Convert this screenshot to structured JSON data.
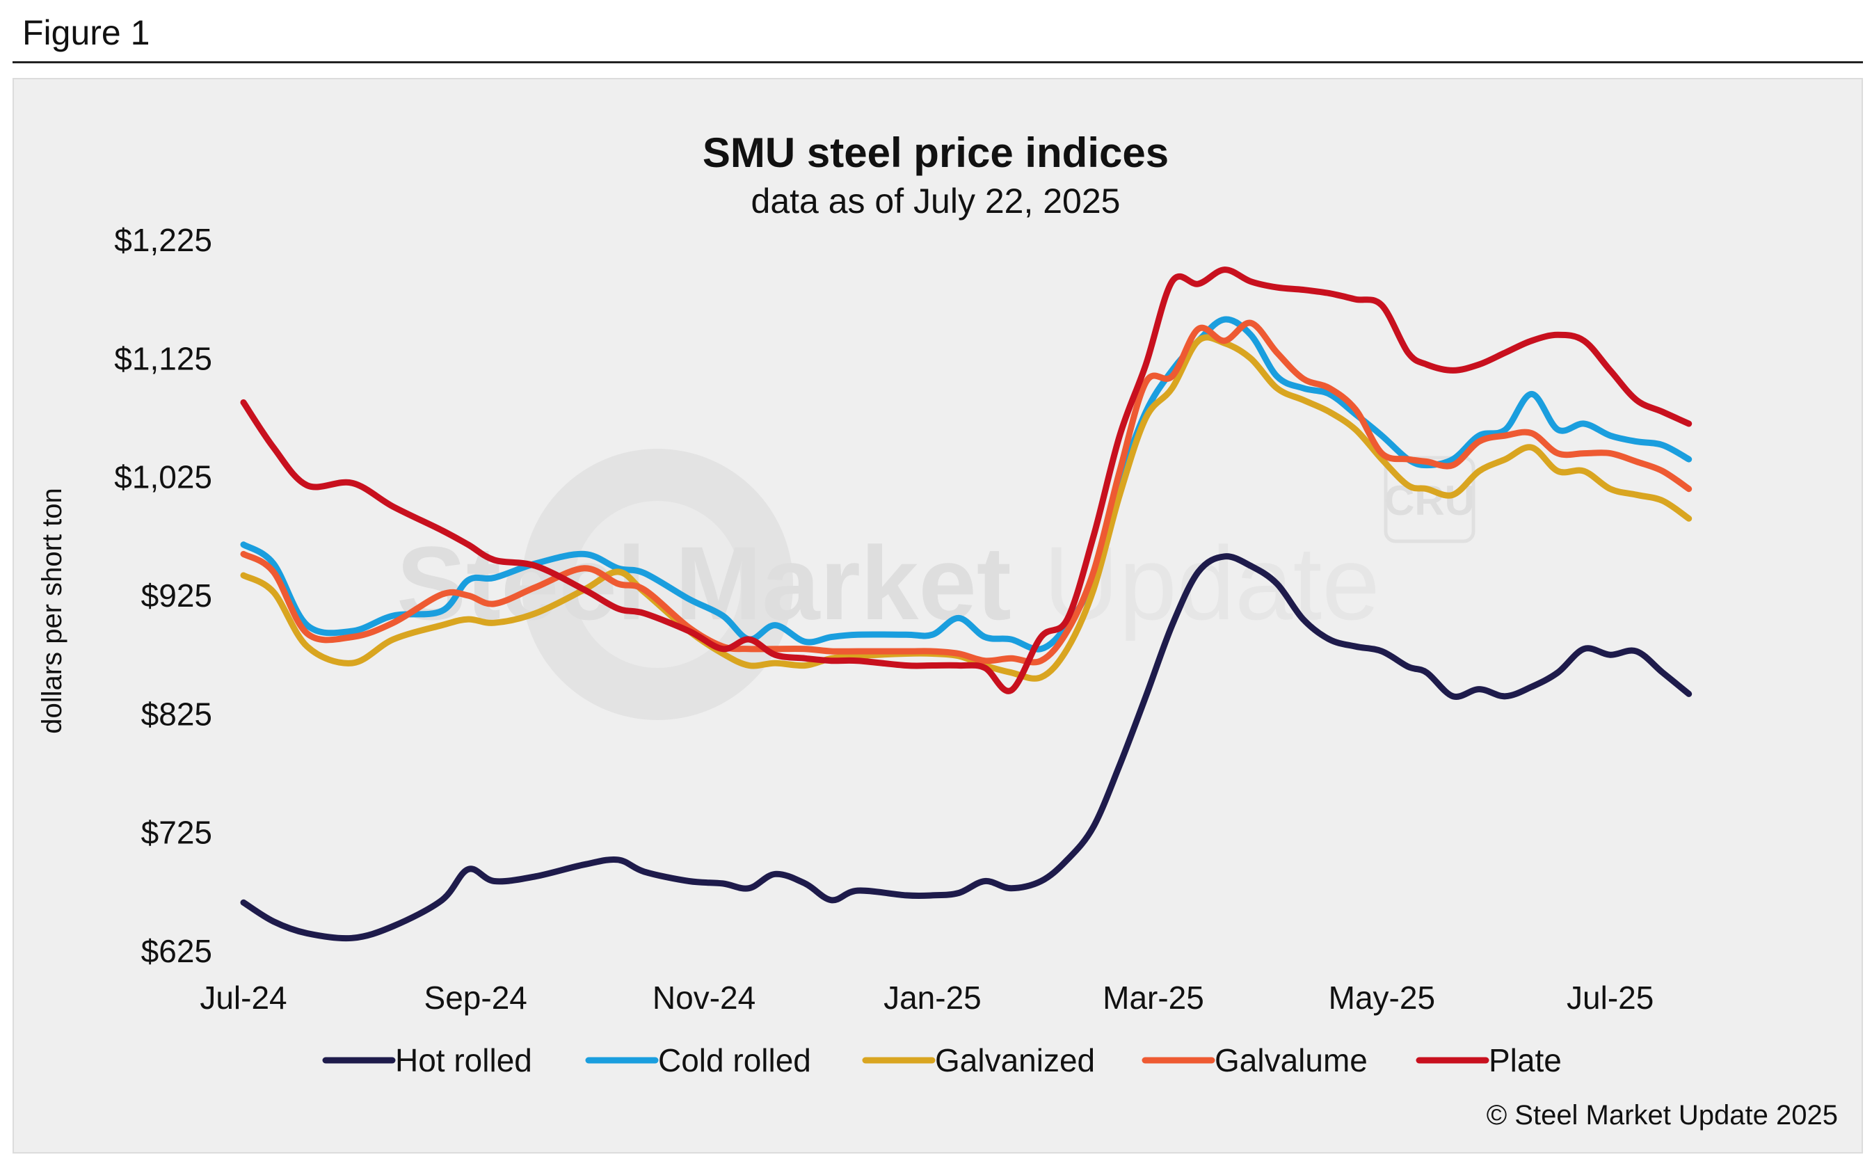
{
  "figure": {
    "label": "Figure 1"
  },
  "watermark": {
    "text_dark": "Steel Market",
    "text_light": "Update",
    "badge": "CRU"
  },
  "copyright": "© Steel Market Update 2025",
  "chart_data": {
    "type": "line",
    "title": "SMU steel price indices",
    "subtitle": "data as of July 22, 2025",
    "xlabel": "",
    "ylabel": "dollars per short ton",
    "ylim": [
      625,
      1225
    ],
    "xlim": [
      "2024-07-01",
      "2025-08-10"
    ],
    "y_ticks": [
      625,
      725,
      825,
      925,
      1025,
      1125,
      1225
    ],
    "y_tick_labels": [
      "$625",
      "$725",
      "$825",
      "$925",
      "$1,025",
      "$1,125",
      "$1,225"
    ],
    "x_ticks": [
      "2024-07-01",
      "2024-09-01",
      "2024-11-01",
      "2025-01-01",
      "2025-03-01",
      "2025-05-01",
      "2025-07-01"
    ],
    "x_tick_labels": [
      "Jul-24",
      "Sep-24",
      "Nov-24",
      "Jan-25",
      "Mar-25",
      "May-25",
      "Jul-25"
    ],
    "grid": false,
    "legend_position": "bottom",
    "series": [
      {
        "name": "Hot rolled",
        "color": "#1e1b4b",
        "x": [
          "2024-07-01",
          "2024-07-09",
          "2024-07-18",
          "2024-07-30",
          "2024-08-10",
          "2024-08-23",
          "2024-08-30",
          "2024-09-06",
          "2024-09-17",
          "2024-09-30",
          "2024-10-09",
          "2024-10-16",
          "2024-10-28",
          "2024-11-06",
          "2024-11-13",
          "2024-11-20",
          "2024-11-28",
          "2024-12-05",
          "2024-12-12",
          "2024-12-25",
          "2025-01-01",
          "2025-01-08",
          "2025-01-15",
          "2025-01-22",
          "2025-01-30",
          "2025-02-06",
          "2025-02-13",
          "2025-02-20",
          "2025-02-27",
          "2025-03-06",
          "2025-03-13",
          "2025-03-20",
          "2025-03-27",
          "2025-04-03",
          "2025-04-10",
          "2025-04-17",
          "2025-04-24",
          "2025-05-01",
          "2025-05-08",
          "2025-05-13",
          "2025-05-20",
          "2025-05-27",
          "2025-06-03",
          "2025-06-10",
          "2025-06-17",
          "2025-06-24",
          "2025-07-01",
          "2025-07-08",
          "2025-07-15",
          "2025-07-22"
        ],
        "values": [
          666,
          650,
          640,
          636,
          646,
          668,
          694,
          684,
          688,
          698,
          702,
          692,
          684,
          682,
          678,
          690,
          682,
          668,
          676,
          672,
          672,
          674,
          684,
          678,
          684,
          702,
          730,
          782,
          840,
          900,
          945,
          958,
          950,
          935,
          905,
          888,
          882,
          878,
          865,
          860,
          840,
          846,
          840,
          848,
          860,
          880,
          875,
          878,
          860,
          842
        ]
      },
      {
        "name": "Cold rolled",
        "color": "#1a9ede",
        "x": [
          "2024-07-01",
          "2024-07-09",
          "2024-07-18",
          "2024-07-30",
          "2024-08-10",
          "2024-08-23",
          "2024-08-30",
          "2024-09-06",
          "2024-09-17",
          "2024-09-30",
          "2024-10-09",
          "2024-10-16",
          "2024-10-28",
          "2024-11-06",
          "2024-11-13",
          "2024-11-20",
          "2024-11-28",
          "2024-12-05",
          "2024-12-12",
          "2024-12-25",
          "2025-01-01",
          "2025-01-08",
          "2025-01-15",
          "2025-01-22",
          "2025-01-30",
          "2025-02-06",
          "2025-02-13",
          "2025-02-20",
          "2025-02-27",
          "2025-03-06",
          "2025-03-13",
          "2025-03-20",
          "2025-03-27",
          "2025-04-03",
          "2025-04-10",
          "2025-04-17",
          "2025-04-24",
          "2025-05-01",
          "2025-05-08",
          "2025-05-13",
          "2025-05-20",
          "2025-05-27",
          "2025-06-03",
          "2025-06-10",
          "2025-06-17",
          "2025-06-24",
          "2025-07-01",
          "2025-07-08",
          "2025-07-15",
          "2025-07-22"
        ],
        "values": [
          968,
          952,
          900,
          895,
          908,
          912,
          938,
          940,
          952,
          960,
          948,
          944,
          922,
          908,
          888,
          900,
          886,
          890,
          892,
          892,
          892,
          906,
          890,
          888,
          880,
          900,
          940,
          1020,
          1080,
          1115,
          1140,
          1158,
          1145,
          1110,
          1100,
          1095,
          1078,
          1060,
          1040,
          1035,
          1040,
          1060,
          1065,
          1095,
          1065,
          1070,
          1060,
          1055,
          1052,
          1040
        ]
      },
      {
        "name": "Galvanized",
        "color": "#d9a520",
        "x": [
          "2024-07-01",
          "2024-07-09",
          "2024-07-18",
          "2024-07-30",
          "2024-08-10",
          "2024-08-23",
          "2024-08-30",
          "2024-09-06",
          "2024-09-17",
          "2024-09-30",
          "2024-10-09",
          "2024-10-16",
          "2024-10-28",
          "2024-11-06",
          "2024-11-13",
          "2024-11-20",
          "2024-11-28",
          "2024-12-05",
          "2024-12-12",
          "2024-12-25",
          "2025-01-01",
          "2025-01-08",
          "2025-01-15",
          "2025-01-22",
          "2025-01-30",
          "2025-02-06",
          "2025-02-13",
          "2025-02-20",
          "2025-02-27",
          "2025-03-06",
          "2025-03-13",
          "2025-03-20",
          "2025-03-27",
          "2025-04-03",
          "2025-04-10",
          "2025-04-17",
          "2025-04-24",
          "2025-05-01",
          "2025-05-08",
          "2025-05-13",
          "2025-05-20",
          "2025-05-27",
          "2025-06-03",
          "2025-06-10",
          "2025-06-17",
          "2025-06-24",
          "2025-07-01",
          "2025-07-08",
          "2025-07-15",
          "2025-07-22"
        ],
        "values": [
          942,
          928,
          882,
          868,
          888,
          900,
          905,
          902,
          910,
          930,
          945,
          928,
          895,
          876,
          866,
          868,
          866,
          872,
          874,
          876,
          876,
          874,
          866,
          860,
          856,
          880,
          930,
          1010,
          1075,
          1100,
          1140,
          1138,
          1125,
          1100,
          1090,
          1080,
          1065,
          1040,
          1018,
          1015,
          1010,
          1030,
          1040,
          1050,
          1030,
          1030,
          1015,
          1010,
          1005,
          990
        ]
      },
      {
        "name": "Galvalume",
        "color": "#ee5a32",
        "x": [
          "2024-07-01",
          "2024-07-09",
          "2024-07-18",
          "2024-07-30",
          "2024-08-10",
          "2024-08-23",
          "2024-08-30",
          "2024-09-06",
          "2024-09-17",
          "2024-09-30",
          "2024-10-09",
          "2024-10-16",
          "2024-10-28",
          "2024-11-06",
          "2024-11-13",
          "2024-11-20",
          "2024-11-28",
          "2024-12-05",
          "2024-12-12",
          "2024-12-25",
          "2025-01-01",
          "2025-01-08",
          "2025-01-15",
          "2025-01-22",
          "2025-01-30",
          "2025-02-06",
          "2025-02-13",
          "2025-02-20",
          "2025-02-27",
          "2025-03-06",
          "2025-03-13",
          "2025-03-20",
          "2025-03-27",
          "2025-04-03",
          "2025-04-10",
          "2025-04-17",
          "2025-04-24",
          "2025-05-01",
          "2025-05-08",
          "2025-05-13",
          "2025-05-20",
          "2025-05-27",
          "2025-06-03",
          "2025-06-10",
          "2025-06-17",
          "2025-06-24",
          "2025-07-01",
          "2025-07-08",
          "2025-07-15",
          "2025-07-22"
        ],
        "values": [
          960,
          945,
          893,
          890,
          902,
          926,
          925,
          918,
          932,
          948,
          935,
          930,
          898,
          882,
          880,
          880,
          880,
          878,
          878,
          878,
          878,
          876,
          870,
          872,
          870,
          895,
          945,
          1030,
          1105,
          1110,
          1150,
          1140,
          1155,
          1130,
          1108,
          1100,
          1082,
          1045,
          1040,
          1038,
          1035,
          1055,
          1060,
          1062,
          1045,
          1045,
          1045,
          1038,
          1030,
          1015
        ]
      },
      {
        "name": "Plate",
        "color": "#c8101e",
        "x": [
          "2024-07-01",
          "2024-07-09",
          "2024-07-18",
          "2024-07-30",
          "2024-08-10",
          "2024-08-23",
          "2024-08-30",
          "2024-09-06",
          "2024-09-17",
          "2024-09-30",
          "2024-10-09",
          "2024-10-16",
          "2024-10-28",
          "2024-11-06",
          "2024-11-13",
          "2024-11-20",
          "2024-11-28",
          "2024-12-05",
          "2024-12-12",
          "2024-12-25",
          "2025-01-01",
          "2025-01-08",
          "2025-01-15",
          "2025-01-22",
          "2025-01-30",
          "2025-02-06",
          "2025-02-13",
          "2025-02-20",
          "2025-02-27",
          "2025-03-06",
          "2025-03-13",
          "2025-03-20",
          "2025-03-27",
          "2025-04-03",
          "2025-04-10",
          "2025-04-17",
          "2025-04-24",
          "2025-05-01",
          "2025-05-08",
          "2025-05-13",
          "2025-05-20",
          "2025-05-27",
          "2025-06-03",
          "2025-06-10",
          "2025-06-17",
          "2025-06-24",
          "2025-07-01",
          "2025-07-08",
          "2025-07-15",
          "2025-07-22"
        ],
        "values": [
          1088,
          1050,
          1018,
          1020,
          1000,
          980,
          968,
          955,
          950,
          930,
          914,
          910,
          895,
          880,
          888,
          875,
          872,
          870,
          870,
          866,
          866,
          866,
          864,
          845,
          890,
          905,
          975,
          1060,
          1120,
          1190,
          1188,
          1200,
          1190,
          1185,
          1183,
          1180,
          1175,
          1170,
          1130,
          1120,
          1115,
          1120,
          1130,
          1140,
          1145,
          1140,
          1115,
          1090,
          1080,
          1070
        ]
      }
    ]
  }
}
